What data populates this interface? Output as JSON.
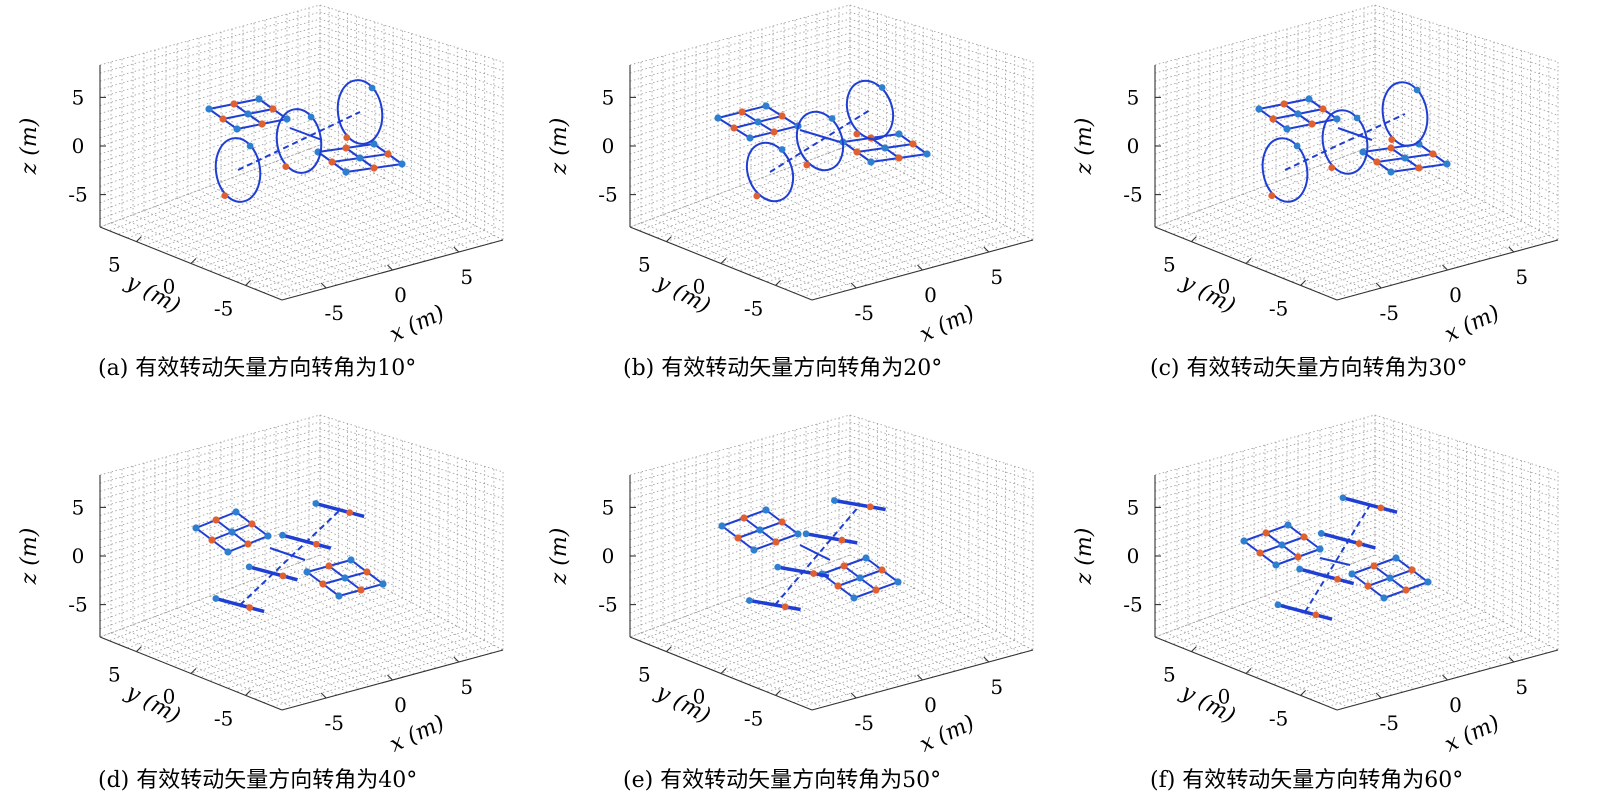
{
  "axes": {
    "x_label": "x (m)",
    "y_label": "y (m)",
    "z_label": "z (m)",
    "x_ticks": [
      "-5",
      "0",
      "5"
    ],
    "y_ticks": [
      "5",
      "0",
      "-5"
    ],
    "z_ticks": [
      "5",
      "0",
      "-5"
    ]
  },
  "colors": {
    "structure": "#1f3fd4",
    "blue_node": "#2f7fd0",
    "orange_node": "#e06030",
    "grid": "#9a9a9a"
  },
  "panels": [
    {
      "id": "a",
      "caption": "(a) 有效转动矢量方向转角为10°",
      "rotation_deg": 10
    },
    {
      "id": "b",
      "caption": "(b) 有效转动矢量方向转角为20°",
      "rotation_deg": 20
    },
    {
      "id": "c",
      "caption": "(c) 有效转动矢量方向转角为30°",
      "rotation_deg": 30
    },
    {
      "id": "d",
      "caption": "(d) 有效转动矢量方向转角为40°",
      "rotation_deg": 40
    },
    {
      "id": "e",
      "caption": "(e) 有效转动矢量方向转角为50°",
      "rotation_deg": 50
    },
    {
      "id": "f",
      "caption": "(f) 有效转动矢量方向转角为60°",
      "rotation_deg": 60
    }
  ]
}
